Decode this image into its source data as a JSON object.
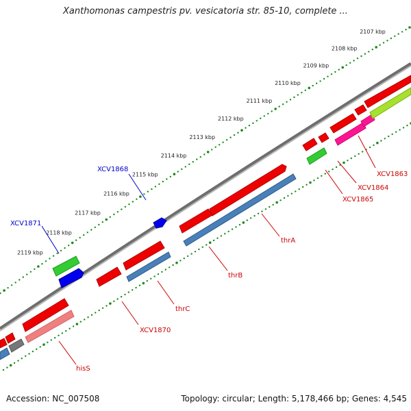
{
  "title": "Xanthomonas campestris pv. vesicatoria str. 85-10, complete ...",
  "footer": {
    "accession": "Accession: NC_007508",
    "summary": "Topology: circular; Length: 5,178,466 bp; Genes: 4,545"
  },
  "ticks": [
    {
      "label": "2107 kbp",
      "at": 0.0
    },
    {
      "label": "2108 kbp",
      "at": 1.0
    },
    {
      "label": "2109 kbp",
      "at": 2.0
    },
    {
      "label": "2110 kbp",
      "at": 3.0
    },
    {
      "label": "2111 kbp",
      "at": 4.0
    },
    {
      "label": "2112 kbp",
      "at": 5.0
    },
    {
      "label": "2113 kbp",
      "at": 6.0
    },
    {
      "label": "2114 kbp",
      "at": 7.0
    },
    {
      "label": "2115 kbp",
      "at": 8.0
    },
    {
      "label": "2116 kbp",
      "at": 9.0
    },
    {
      "label": "2117 kbp",
      "at": 10.0
    },
    {
      "label": "2118 kbp",
      "at": 11.0
    },
    {
      "label": "2119 kbp",
      "at": 12.0
    }
  ],
  "tracks": [
    {
      "name": "forward-strand-genes",
      "color": "#ff0000"
    },
    {
      "name": "reverse-strand-genes",
      "color": "#4682b4"
    }
  ],
  "genes": [
    {
      "label": "XCV1863",
      "color": "#cc0000"
    },
    {
      "label": "XCV1864",
      "color": "#cc0000"
    },
    {
      "label": "XCV1865",
      "color": "#cc0000"
    },
    {
      "label": "thrA",
      "color": "#cc0000"
    },
    {
      "label": "thrB",
      "color": "#cc0000"
    },
    {
      "label": "thrC",
      "color": "#cc0000"
    },
    {
      "label": "XCV1870",
      "color": "#cc0000"
    },
    {
      "label": "hisS",
      "color": "#cc0000"
    },
    {
      "label": "XCV1868",
      "color": "#0000cc"
    },
    {
      "label": "XCV1871",
      "color": "#0000cc"
    }
  ]
}
